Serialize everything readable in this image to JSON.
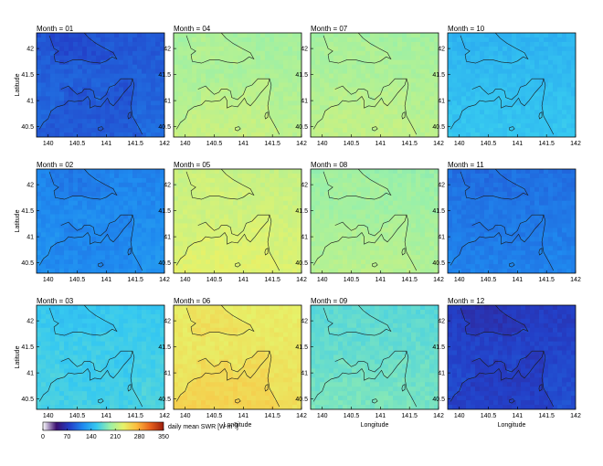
{
  "chart_data": {
    "type": "heatmap",
    "title": "",
    "xlabel": "Longitude",
    "ylabel": "Latitude",
    "xlim": [
      139.8,
      142.0
    ],
    "ylim": [
      40.3,
      42.3
    ],
    "xticks": [
      "140",
      "140.5",
      "141",
      "141.5",
      "142"
    ],
    "yticks": [
      "42",
      "41.5",
      "41",
      "40.5"
    ],
    "grid": "off",
    "colorbar": {
      "label": "daily mean SWR [W m",
      "label_exponent": "-2",
      "label_suffix": "]",
      "ticks": [
        "0",
        "70",
        "140",
        "210",
        "280",
        "350"
      ],
      "range": [
        0,
        350
      ],
      "colormap": [
        "#ffffff",
        "#3b0f70",
        "#2340c8",
        "#1f8bf0",
        "#36c9f0",
        "#9af0a8",
        "#e6f26a",
        "#fdbb3d",
        "#e8631c",
        "#9c1d0c"
      ]
    },
    "panels": [
      {
        "title": "Month = 01",
        "approx_mean": 95,
        "land_offset": -8
      },
      {
        "title": "Month = 04",
        "approx_mean": 205,
        "land_offset": 6
      },
      {
        "title": "Month = 07",
        "approx_mean": 205,
        "land_offset": 4
      },
      {
        "title": "Month = 10",
        "approx_mean": 148,
        "land_offset": 0
      },
      {
        "title": "Month = 02",
        "approx_mean": 118,
        "land_offset": -6
      },
      {
        "title": "Month = 05",
        "approx_mean": 222,
        "land_offset": 4
      },
      {
        "title": "Month = 08",
        "approx_mean": 200,
        "land_offset": 4
      },
      {
        "title": "Month = 11",
        "approx_mean": 108,
        "land_offset": -2
      },
      {
        "title": "Month = 03",
        "approx_mean": 160,
        "land_offset": -4
      },
      {
        "title": "Month = 06",
        "approx_mean": 242,
        "land_offset": 8
      },
      {
        "title": "Month = 09",
        "approx_mean": 175,
        "land_offset": 2
      },
      {
        "title": "Month = 12",
        "approx_mean": 80,
        "land_offset": -8
      }
    ]
  }
}
